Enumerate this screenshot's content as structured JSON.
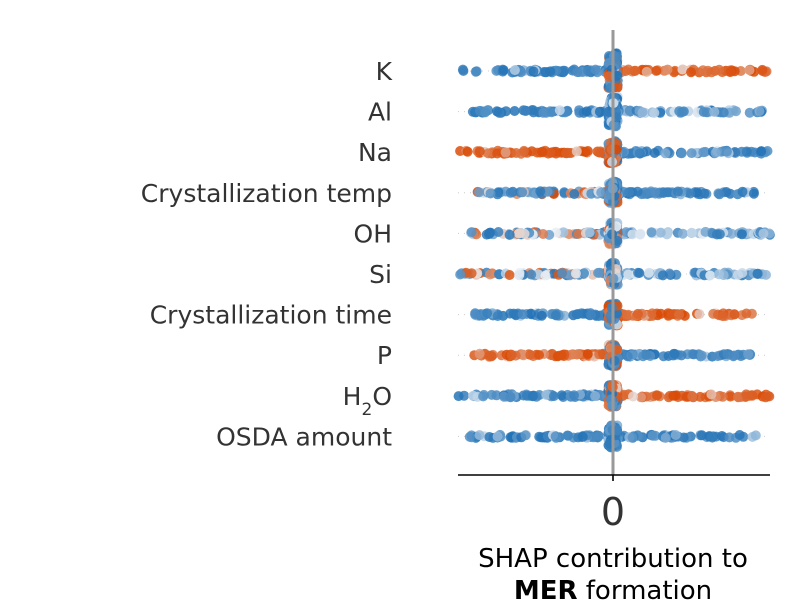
{
  "chart_data": {
    "type": "scatter",
    "subtype": "shap-beeswarm",
    "title": "",
    "xlabel_line1": "SHAP contribution to",
    "xlabel_line2_bold": "MER",
    "xlabel_line2_rest": " formation",
    "x_ticks": [
      {
        "value": 0,
        "label": "0"
      }
    ],
    "xlim": [
      -1.0,
      1.0
    ],
    "zero_line": true,
    "grid": false,
    "legend": "none",
    "colormap": {
      "low": "#2171b5",
      "mid": "#e8eef5",
      "high": "#d94801"
    },
    "features": [
      {
        "label": "K",
        "left_value": "low",
        "right_value": "high",
        "spread": 1.0,
        "center_cluster": "large"
      },
      {
        "label": "Al",
        "left_value": "low",
        "right_value": "mid-low",
        "spread": 0.95,
        "center_cluster": "medium"
      },
      {
        "label": "Na",
        "left_value": "high",
        "right_value": "low",
        "spread": 1.0,
        "center_cluster": "small"
      },
      {
        "label": "Crystallization temp",
        "left_value": "mixed",
        "right_value": "low",
        "spread": 0.9,
        "center_cluster": "small"
      },
      {
        "label": "OH",
        "left_value": "mixed",
        "right_value": "mid-low",
        "spread": 1.0,
        "center_cluster": "small"
      },
      {
        "label": "Si",
        "left_value": "mixed",
        "right_value": "mid-low",
        "spread": 1.0,
        "center_cluster": "small"
      },
      {
        "label": "Crystallization time",
        "left_value": "low",
        "right_value": "high",
        "spread": 0.9,
        "center_cluster": "small"
      },
      {
        "label": "P",
        "left_value": "high",
        "right_value": "low",
        "spread": 0.9,
        "center_cluster": "small"
      },
      {
        "label": "H",
        "label_sub": "2",
        "label_tail": "O",
        "left_value": "low",
        "right_value": "high",
        "spread": 1.0,
        "center_cluster": "small"
      },
      {
        "label": "OSDA amount",
        "left_value": "low",
        "right_value": "low",
        "spread": 0.95,
        "center_cluster": "small"
      }
    ]
  }
}
